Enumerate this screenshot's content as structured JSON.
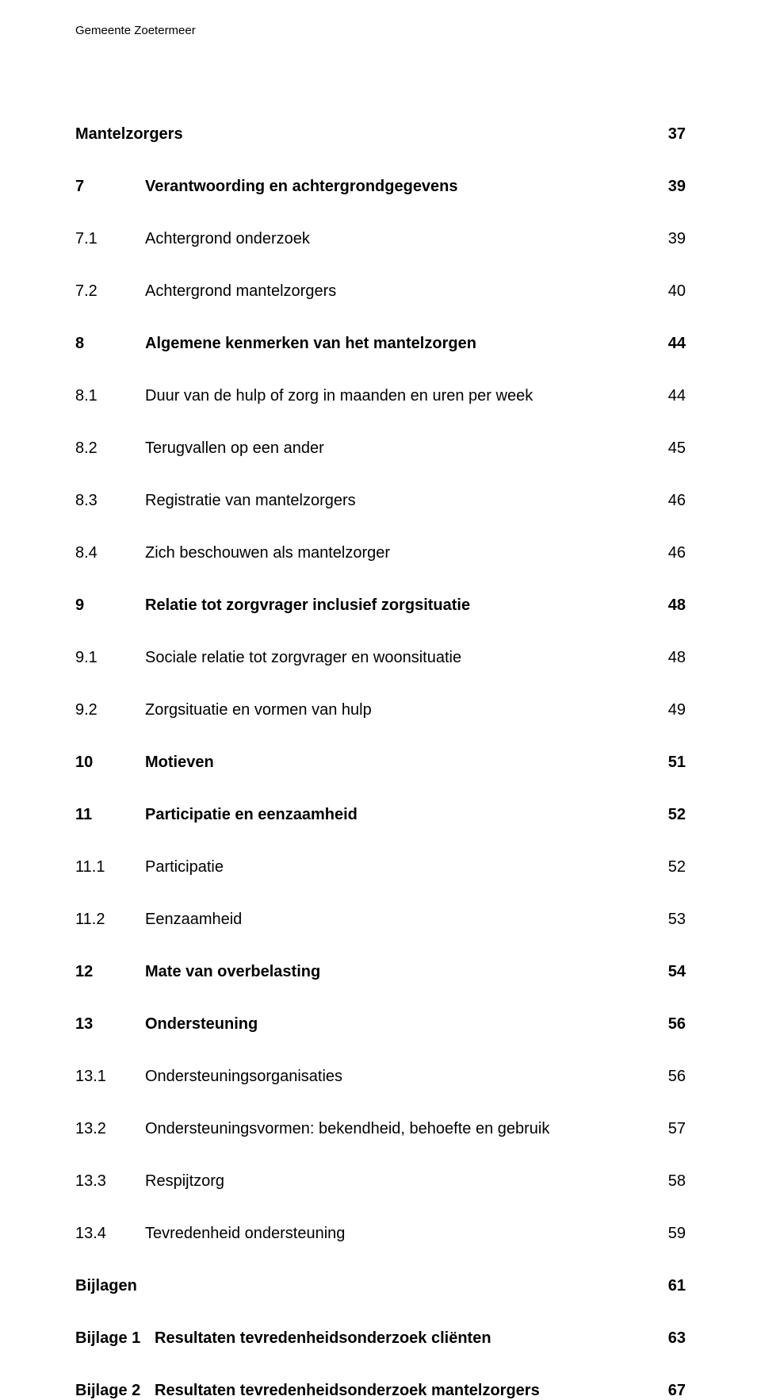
{
  "header": "Gemeente Zoetermeer",
  "rows": [
    {
      "num": "",
      "title": "Mantelzorgers",
      "page": "37",
      "bold": true
    },
    {
      "num": "7",
      "title": "Verantwoording en achtergrondgegevens",
      "page": "39",
      "bold": true
    },
    {
      "num": "7.1",
      "title": "Achtergrond onderzoek",
      "page": "39",
      "bold": false
    },
    {
      "num": "7.2",
      "title": "Achtergrond mantelzorgers",
      "page": "40",
      "bold": false
    },
    {
      "num": "8",
      "title": "Algemene kenmerken van het mantelzorgen",
      "page": "44",
      "bold": true
    },
    {
      "num": "8.1",
      "title": "Duur van de hulp of zorg in maanden en uren per week",
      "page": "44",
      "bold": false
    },
    {
      "num": "8.2",
      "title": "Terugvallen op een ander",
      "page": "45",
      "bold": false
    },
    {
      "num": "8.3",
      "title": "Registratie van mantelzorgers",
      "page": "46",
      "bold": false
    },
    {
      "num": "8.4",
      "title": "Zich beschouwen als mantelzorger",
      "page": "46",
      "bold": false
    },
    {
      "num": "9",
      "title": "Relatie tot zorgvrager inclusief zorgsituatie",
      "page": "48",
      "bold": true
    },
    {
      "num": "9.1",
      "title": "Sociale relatie tot zorgvrager en woonsituatie",
      "page": "48",
      "bold": false
    },
    {
      "num": "9.2",
      "title": "Zorgsituatie en vormen van hulp",
      "page": "49",
      "bold": false
    },
    {
      "num": "10",
      "title": "Motieven",
      "page": "51",
      "bold": true
    },
    {
      "num": "11",
      "title": "Participatie en eenzaamheid",
      "page": "52",
      "bold": true
    },
    {
      "num": "11.1",
      "title": "Participatie",
      "page": "52",
      "bold": false
    },
    {
      "num": "11.2",
      "title": "Eenzaamheid",
      "page": "53",
      "bold": false
    },
    {
      "num": "12",
      "title": "Mate van overbelasting",
      "page": "54",
      "bold": true
    },
    {
      "num": "13",
      "title": "Ondersteuning",
      "page": "56",
      "bold": true
    },
    {
      "num": "13.1",
      "title": "Ondersteuningsorganisaties",
      "page": "56",
      "bold": false
    },
    {
      "num": "13.2",
      "title": "Ondersteuningsvormen: bekendheid, behoefte en gebruik",
      "page": "57",
      "bold": false
    },
    {
      "num": "13.3",
      "title": "Respijtzorg",
      "page": "58",
      "bold": false
    },
    {
      "num": "13.4",
      "title": "Tevredenheid ondersteuning",
      "page": "59",
      "bold": false
    },
    {
      "num": "Bijlagen",
      "title": "",
      "page": "61",
      "bold": true,
      "nolabel_title": true
    },
    {
      "num": "Bijlage 1",
      "title": "Resultaten tevredenheidsonderzoek cliënten",
      "page": "63",
      "bold": true,
      "bijlage": true
    },
    {
      "num": "Bijlage 2",
      "title": "Resultaten tevredenheidsonderzoek mantelzorgers",
      "page": "67",
      "bold": true,
      "bijlage": true
    }
  ]
}
